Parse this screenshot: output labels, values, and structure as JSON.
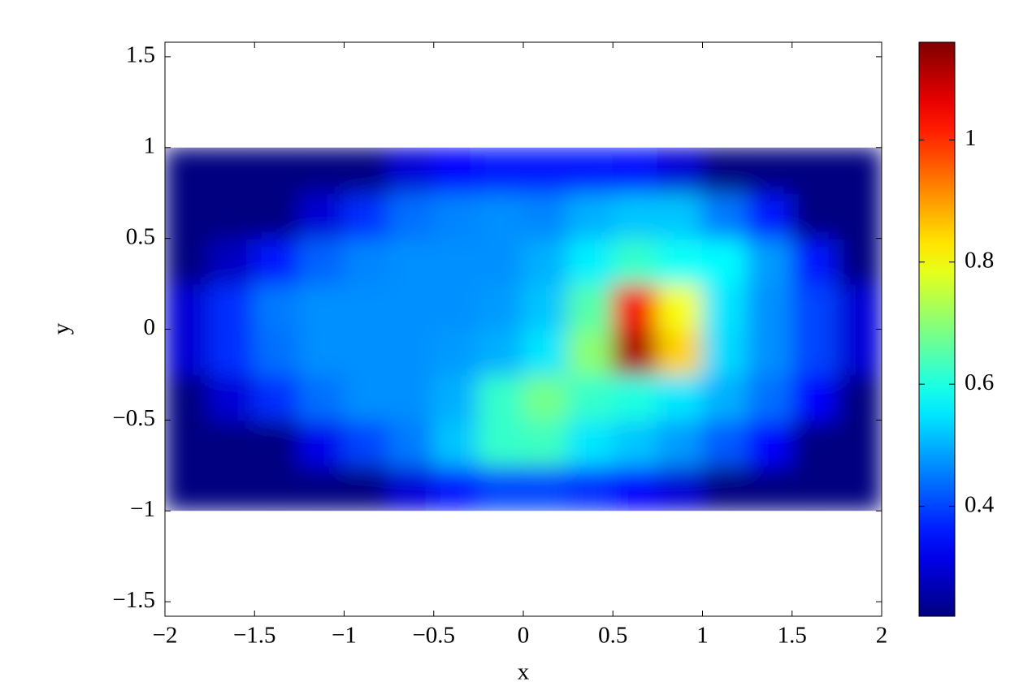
{
  "chart_data": {
    "type": "heatmap",
    "xlabel": "x",
    "ylabel": "y",
    "x": [
      -1.875,
      -1.625,
      -1.375,
      -1.125,
      -0.875,
      -0.625,
      -0.375,
      -0.125,
      0.125,
      0.375,
      0.625,
      0.875,
      1.125,
      1.375,
      1.625,
      1.875
    ],
    "y": [
      -0.875,
      -0.625,
      -0.375,
      -0.125,
      0.125,
      0.375,
      0.625,
      0.875
    ],
    "z": [
      [
        0.22,
        0.22,
        0.22,
        0.22,
        0.22,
        0.3,
        0.36,
        0.4,
        0.4,
        0.38,
        0.34,
        0.3,
        0.22,
        0.22,
        0.22,
        0.22
      ],
      [
        0.22,
        0.22,
        0.22,
        0.32,
        0.4,
        0.45,
        0.52,
        0.62,
        0.63,
        0.55,
        0.52,
        0.48,
        0.42,
        0.34,
        0.22,
        0.22
      ],
      [
        0.22,
        0.3,
        0.38,
        0.44,
        0.47,
        0.47,
        0.5,
        0.62,
        0.68,
        0.62,
        0.6,
        0.55,
        0.5,
        0.44,
        0.34,
        0.22
      ],
      [
        0.3,
        0.38,
        0.44,
        0.47,
        0.47,
        0.47,
        0.48,
        0.5,
        0.55,
        0.7,
        1.12,
        0.85,
        0.54,
        0.47,
        0.4,
        0.3
      ],
      [
        0.3,
        0.38,
        0.45,
        0.47,
        0.47,
        0.47,
        0.47,
        0.48,
        0.52,
        0.65,
        1.05,
        0.8,
        0.55,
        0.47,
        0.4,
        0.3
      ],
      [
        0.22,
        0.28,
        0.36,
        0.43,
        0.46,
        0.47,
        0.47,
        0.47,
        0.5,
        0.56,
        0.62,
        0.58,
        0.57,
        0.48,
        0.36,
        0.22
      ],
      [
        0.22,
        0.22,
        0.22,
        0.3,
        0.38,
        0.44,
        0.46,
        0.47,
        0.46,
        0.5,
        0.52,
        0.52,
        0.45,
        0.36,
        0.22,
        0.22
      ],
      [
        0.22,
        0.22,
        0.22,
        0.22,
        0.22,
        0.3,
        0.34,
        0.36,
        0.36,
        0.36,
        0.35,
        0.3,
        0.22,
        0.22,
        0.22,
        0.22
      ]
    ],
    "data_xlim": [
      -2,
      2
    ],
    "data_ylim": [
      -1,
      1
    ],
    "xlim": [
      -2,
      2
    ],
    "ylim": [
      -1.58,
      1.58
    ],
    "xticks": [
      {
        "value": -2,
        "label": "−2"
      },
      {
        "value": -1.5,
        "label": "−1.5"
      },
      {
        "value": -1,
        "label": "−1"
      },
      {
        "value": -0.5,
        "label": "−0.5"
      },
      0,
      0.5,
      1,
      1.5,
      2
    ],
    "yticks": [
      {
        "value": -1.5,
        "label": "−1.5"
      },
      {
        "value": -1,
        "label": "−1"
      },
      {
        "value": -0.5,
        "label": "−0.5"
      },
      0,
      0.5,
      1,
      1.5
    ],
    "clim": [
      0.22,
      1.16
    ],
    "cticks": [
      0.4,
      0.6,
      0.8,
      1
    ],
    "colormap": "jet"
  }
}
